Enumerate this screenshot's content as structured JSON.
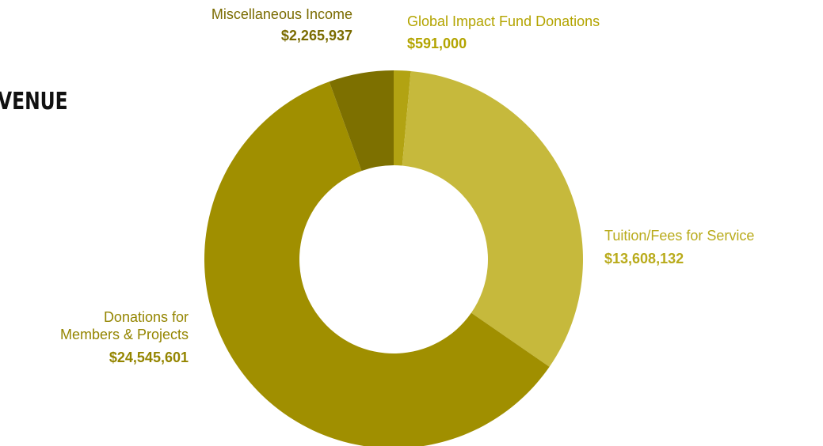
{
  "heading": "VENUE",
  "chart_data": {
    "type": "pie",
    "donut": true,
    "slices": [
      {
        "label": "Global Impact Fund Donations",
        "value": 591000,
        "display": "$591,000",
        "color": "#b2a312"
      },
      {
        "label": "Tuition/Fees for Service",
        "value": 13608132,
        "display": "$13,608,132",
        "color": "#c6b93c"
      },
      {
        "label": "Donations for Members & Projects",
        "label_lines": [
          "Donations for",
          "Members & Projects"
        ],
        "value": 24545601,
        "display": "$24,545,601",
        "color": "#a08f00"
      },
      {
        "label": "Miscellaneous Income",
        "value": 2265937,
        "display": "$2,265,937",
        "color": "#7d7000"
      }
    ]
  }
}
